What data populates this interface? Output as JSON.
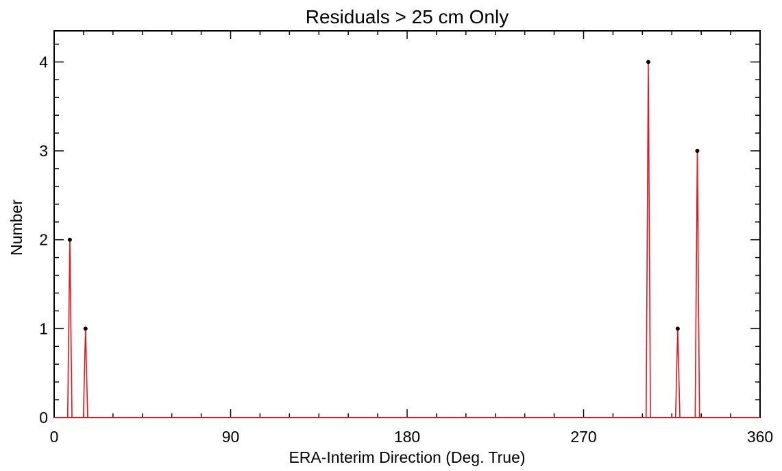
{
  "chart_data": {
    "type": "line",
    "title": "Residuals > 25 cm Only",
    "xlabel": "ERA-Interim Direction (Deg. True)",
    "ylabel": "Number",
    "xlim": [
      0,
      360
    ],
    "ylim": [
      0,
      4.35
    ],
    "xticks": [
      0,
      90,
      180,
      270,
      360
    ],
    "yticks": [
      0,
      1,
      2,
      3,
      4
    ],
    "grid": false,
    "line_color": "#e8141b",
    "series": [
      {
        "points": [
          {
            "x": 8,
            "y": 2
          },
          {
            "x": 16,
            "y": 1
          },
          {
            "x": 303,
            "y": 4
          },
          {
            "x": 318,
            "y": 1
          },
          {
            "x": 328,
            "y": 3
          }
        ]
      }
    ]
  }
}
